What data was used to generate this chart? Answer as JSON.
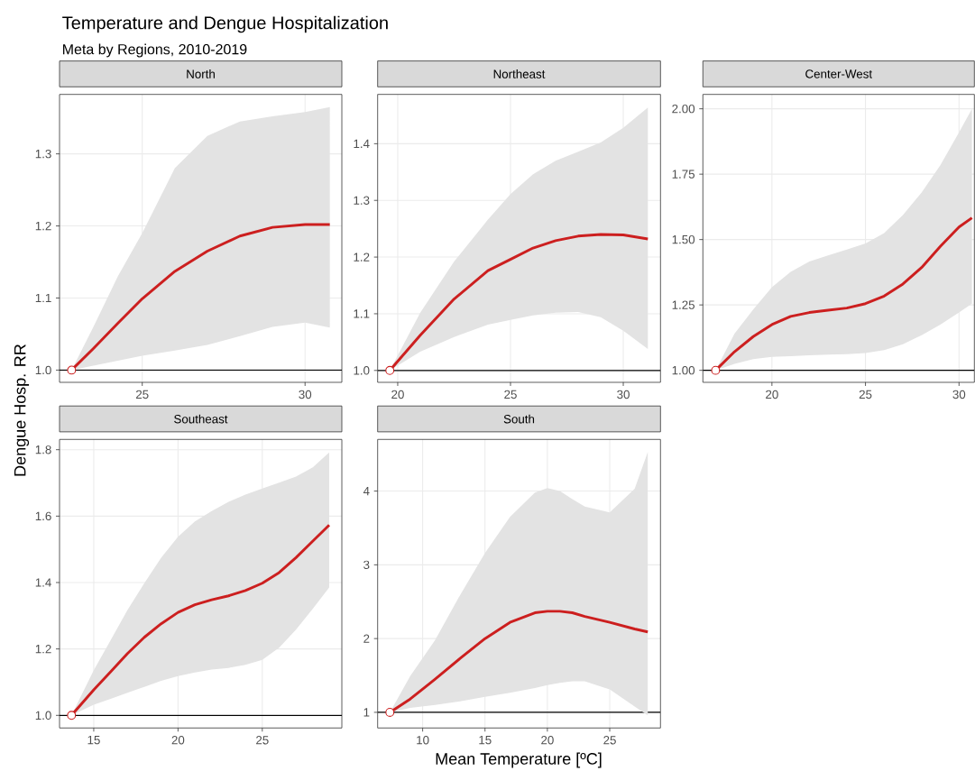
{
  "chart_data": [
    {
      "type": "other",
      "title": "Temperature and Dengue Hospitalization",
      "subtitle": "Meta by Regions, 2010-2019",
      "xlabel": "Mean Temperature [ºC]",
      "ylabel": "Dengue Hosp. RR"
    },
    {
      "type": "line",
      "title": "North",
      "xlim": [
        22.46,
        31.13
      ],
      "ylim": [
        0.983,
        1.3825
      ],
      "xticks": [
        25,
        30
      ],
      "yticks": [
        {
          "value": 1.0,
          "label": "1.0"
        },
        1.1,
        1.2,
        1.3
      ],
      "grid": true,
      "ref_lines": [
        {
          "axis": "y",
          "value": 1.0,
          "color": "#000000"
        }
      ],
      "series": [
        {
          "type": "line",
          "color": "#cc1f1f",
          "x": [
            22.83,
            23.5,
            24.25,
            25,
            26,
            27,
            28,
            29,
            30,
            30.76
          ],
          "values": [
            1.0,
            1.03,
            1.065,
            1.099,
            1.137,
            1.165,
            1.186,
            1.198,
            1.202,
            1.202
          ],
          "lower": [
            1.0,
            1.006,
            1.013,
            1.02,
            1.027,
            1.035,
            1.047,
            1.06,
            1.066,
            1.059
          ],
          "upper": [
            1.0,
            1.06,
            1.13,
            1.19,
            1.28,
            1.325,
            1.345,
            1.352,
            1.358,
            1.365
          ]
        },
        {
          "type": "scatter",
          "color": "#cc1f1f",
          "marker": "circle",
          "x": [
            22.83
          ],
          "values": [
            1.0
          ]
        }
      ]
    },
    {
      "type": "line",
      "title": "Northeast",
      "xlim": [
        19.11,
        31.65
      ],
      "ylim": [
        0.979,
        1.487
      ],
      "xticks": [
        20,
        25,
        30
      ],
      "yticks": [
        {
          "value": 1.0,
          "label": "1.0"
        },
        1.1,
        1.2,
        1.3,
        1.4
      ],
      "grid": true,
      "ref_lines": [
        {
          "axis": "y",
          "value": 1.0,
          "color": "#000000"
        }
      ],
      "series": [
        {
          "type": "line",
          "color": "#cc1f1f",
          "x": [
            19.65,
            21,
            22.5,
            24,
            25,
            26,
            27,
            28,
            29,
            30,
            31.09
          ],
          "values": [
            1.0,
            1.062,
            1.126,
            1.176,
            1.196,
            1.216,
            1.229,
            1.237,
            1.24,
            1.239,
            1.232
          ],
          "lower": [
            1.0,
            1.033,
            1.059,
            1.081,
            1.089,
            1.097,
            1.102,
            1.103,
            1.094,
            1.07,
            1.038
          ],
          "upper": [
            1.0,
            1.102,
            1.192,
            1.266,
            1.311,
            1.346,
            1.37,
            1.386,
            1.402,
            1.428,
            1.464
          ]
        },
        {
          "type": "scatter",
          "color": "#cc1f1f",
          "marker": "circle",
          "x": [
            19.65
          ],
          "values": [
            1.0
          ]
        }
      ]
    },
    {
      "type": "line",
      "title": "Center-West",
      "xlim": [
        16.31,
        30.82
      ],
      "ylim": [
        0.954,
        2.055
      ],
      "xticks": [
        20,
        25,
        30
      ],
      "yticks": [
        {
          "value": 1.0,
          "label": "1.00"
        },
        1.25,
        {
          "value": 1.5,
          "label": "1.50"
        },
        1.75,
        {
          "value": 2.0,
          "label": "2.00"
        }
      ],
      "grid": true,
      "ref_lines": [
        {
          "axis": "y",
          "value": 1.0,
          "color": "#000000"
        }
      ],
      "series": [
        {
          "type": "line",
          "color": "#cc1f1f",
          "x": [
            16.99,
            18,
            19,
            20,
            21,
            22,
            23,
            24,
            25,
            26,
            27,
            28,
            29,
            30,
            30.69
          ],
          "values": [
            1.0,
            1.071,
            1.129,
            1.175,
            1.206,
            1.221,
            1.23,
            1.238,
            1.255,
            1.284,
            1.33,
            1.393,
            1.474,
            1.548,
            1.583
          ],
          "lower": [
            1.0,
            1.025,
            1.043,
            1.051,
            1.054,
            1.057,
            1.06,
            1.062,
            1.066,
            1.077,
            1.1,
            1.134,
            1.175,
            1.221,
            1.255
          ],
          "upper": [
            1.0,
            1.14,
            1.232,
            1.318,
            1.376,
            1.416,
            1.439,
            1.462,
            1.485,
            1.525,
            1.594,
            1.68,
            1.784,
            1.91,
            2.0
          ]
        },
        {
          "type": "scatter",
          "color": "#cc1f1f",
          "marker": "circle",
          "x": [
            16.99
          ],
          "values": [
            1.0
          ]
        }
      ]
    },
    {
      "type": "line",
      "title": "Southeast",
      "xlim": [
        12.97,
        29.72
      ],
      "ylim": [
        0.962,
        1.831
      ],
      "xticks": [
        15,
        20,
        25
      ],
      "yticks": [
        {
          "value": 1.0,
          "label": "1.0"
        },
        1.2,
        1.4,
        1.6,
        1.8
      ],
      "grid": true,
      "ref_lines": [
        {
          "axis": "y",
          "value": 1.0,
          "color": "#000000"
        }
      ],
      "series": [
        {
          "type": "line",
          "color": "#cc1f1f",
          "x": [
            13.68,
            15,
            16,
            17,
            18,
            19,
            20,
            21,
            22,
            23,
            24,
            25,
            26,
            27,
            28,
            28.97
          ],
          "values": [
            1.0,
            1.077,
            1.131,
            1.186,
            1.235,
            1.276,
            1.31,
            1.333,
            1.348,
            1.36,
            1.376,
            1.398,
            1.43,
            1.475,
            1.525,
            1.573
          ],
          "lower": [
            1.0,
            1.032,
            1.05,
            1.068,
            1.086,
            1.104,
            1.118,
            1.129,
            1.138,
            1.143,
            1.152,
            1.167,
            1.204,
            1.258,
            1.321,
            1.385
          ],
          "upper": [
            1.0,
            1.136,
            1.226,
            1.317,
            1.398,
            1.475,
            1.538,
            1.584,
            1.615,
            1.643,
            1.665,
            1.683,
            1.701,
            1.719,
            1.747,
            1.792
          ]
        },
        {
          "type": "scatter",
          "color": "#cc1f1f",
          "marker": "circle",
          "x": [
            13.68
          ],
          "values": [
            1.0
          ]
        }
      ]
    },
    {
      "type": "line",
      "title": "South",
      "xlim": [
        6.39,
        29.07
      ],
      "ylim": [
        0.788,
        4.7
      ],
      "xticks": [
        10,
        15,
        20,
        25
      ],
      "yticks": [
        1,
        2,
        3,
        4
      ],
      "grid": true,
      "ref_lines": [
        {
          "axis": "y",
          "value": 1,
          "color": "#000000"
        }
      ],
      "series": [
        {
          "type": "line",
          "color": "#cc1f1f",
          "x": [
            7.37,
            9,
            11,
            13,
            15,
            17,
            19,
            20,
            21,
            22,
            23,
            25,
            27,
            28.05
          ],
          "values": [
            1.0,
            1.18,
            1.45,
            1.73,
            2.0,
            2.22,
            2.35,
            2.37,
            2.37,
            2.35,
            2.3,
            2.22,
            2.13,
            2.09
          ],
          "lower": [
            1.0,
            1.06,
            1.1,
            1.15,
            1.21,
            1.265,
            1.33,
            1.37,
            1.4,
            1.42,
            1.42,
            1.31,
            1.08,
            0.96
          ],
          "upper": [
            1.0,
            1.49,
            1.98,
            2.59,
            3.16,
            3.65,
            3.98,
            4.04,
            4.0,
            3.89,
            3.79,
            3.71,
            4.03,
            4.53
          ]
        },
        {
          "type": "scatter",
          "color": "#cc1f1f",
          "marker": "circle",
          "x": [
            7.37
          ],
          "values": [
            1.0
          ]
        }
      ]
    }
  ]
}
